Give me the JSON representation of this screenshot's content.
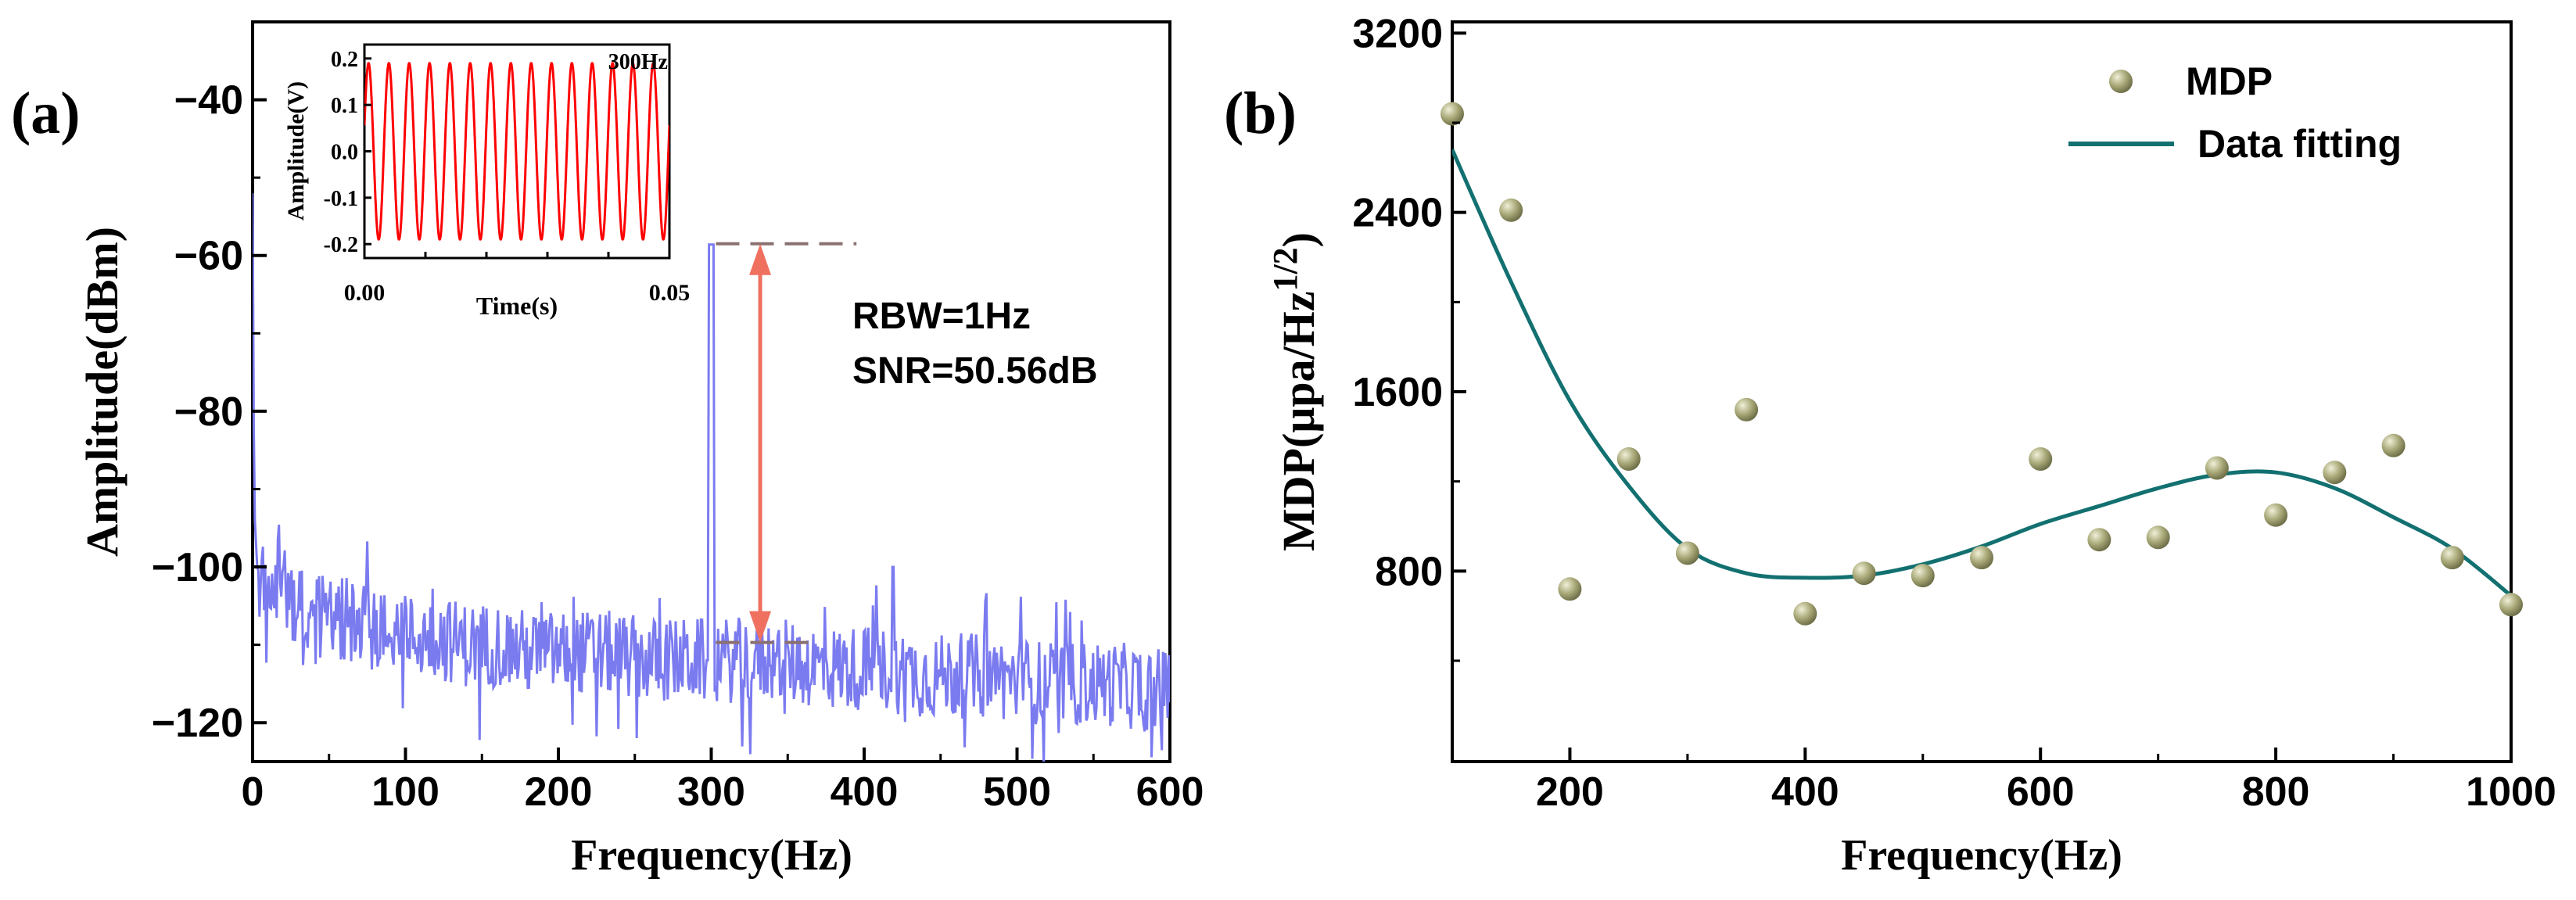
{
  "chart_data": [
    {
      "panel_label": "(a)",
      "type": "line",
      "xlabel": "Frequency(Hz)",
      "ylabel": "Amplitude(dBm)",
      "xlim": [
        0,
        600
      ],
      "ylim": [
        -125,
        -30
      ],
      "xticks": [
        0,
        100,
        200,
        300,
        400,
        500,
        600
      ],
      "yticks": [
        -40,
        -60,
        -80,
        -100,
        -120
      ],
      "tick_labels_x": [
        "0",
        "100",
        "200",
        "300",
        "400",
        "500",
        "600"
      ],
      "tick_labels_y": [
        "−40",
        "−60",
        "−80",
        "−100",
        "−120"
      ],
      "series_color": "#7b7bf0",
      "noise_floor": [
        [
          0,
          -52
        ],
        [
          1,
          -92
        ],
        [
          3,
          -100
        ],
        [
          8,
          -103
        ],
        [
          15,
          -101
        ],
        [
          25,
          -104
        ],
        [
          40,
          -106
        ],
        [
          60,
          -107
        ],
        [
          80,
          -108
        ],
        [
          100,
          -109
        ],
        [
          120,
          -109
        ],
        [
          140,
          -110
        ],
        [
          160,
          -110
        ],
        [
          180,
          -111
        ],
        [
          200,
          -111
        ],
        [
          230,
          -111
        ],
        [
          260,
          -112
        ],
        [
          295,
          -112
        ],
        [
          305,
          -112
        ],
        [
          340,
          -112
        ],
        [
          380,
          -113
        ],
        [
          410,
          -113
        ],
        [
          440,
          -114
        ],
        [
          480,
          -114
        ],
        [
          520,
          -115
        ],
        [
          560,
          -115
        ],
        [
          600,
          -116
        ]
      ],
      "signal_peak": {
        "freq": 300,
        "amplitude": -58.6
      },
      "spurs": [
        {
          "freq": 419,
          "amplitude": -100
        }
      ],
      "annotation": {
        "lines": [
          "RBW=1Hz",
          "SNR=50.56dB"
        ],
        "top_level": -58.5,
        "noise_level": -109.7,
        "arrow_freq": 332,
        "arrow_color": "#f07060",
        "dash_color": "#8a7070"
      },
      "inset": {
        "type": "line",
        "xlabel": "Time(s)",
        "ylabel": "Amplitude(V)",
        "label": "300Hz",
        "xlim": [
          0,
          0.05
        ],
        "ylim": [
          -0.23,
          0.23
        ],
        "xtick_labels": [
          "0.00",
          "0.05"
        ],
        "ytick_values": [
          0.2,
          0.1,
          0.0,
          -0.1,
          -0.2
        ],
        "ytick_labels": [
          "0.2",
          "0.1",
          "0.0",
          "-0.1",
          "-0.2"
        ],
        "frequency_hz": 300,
        "amplitude_v": 0.19,
        "color": "#ff0000"
      }
    },
    {
      "panel_label": "(b)",
      "type": "scatter",
      "xlabel": "Frequency(Hz)",
      "ylabel_main": "MDP(μpa/Hz",
      "ylabel_sup": "1/2",
      "ylabel_close": ")",
      "xlim": [
        100,
        1000
      ],
      "ylim": [
        -50,
        3250
      ],
      "xticks": [
        200,
        400,
        600,
        800,
        1000
      ],
      "yticks": [
        800,
        1600,
        2400,
        3200
      ],
      "tick_labels_x": [
        "200",
        "400",
        "600",
        "800",
        "1000"
      ],
      "tick_labels_y": [
        "800",
        "1600",
        "2400",
        "3200"
      ],
      "legend": [
        "MDP",
        "Data fitting"
      ],
      "legend_position": "top-right",
      "series": [
        {
          "name": "MDP",
          "type": "scatter",
          "color": "#a8a878",
          "x": [
            100,
            150,
            200,
            250,
            300,
            350,
            400,
            450,
            500,
            550,
            600,
            650,
            700,
            750,
            800,
            850,
            900,
            950,
            1000
          ],
          "y": [
            2840,
            2410,
            720,
            1300,
            880,
            1520,
            610,
            790,
            780,
            860,
            1300,
            940,
            950,
            1260,
            1050,
            1240,
            1360,
            860,
            650
          ]
        },
        {
          "name": "Data fitting",
          "type": "line",
          "color": "#137070",
          "x": [
            100,
            150,
            200,
            250,
            300,
            350,
            400,
            450,
            500,
            550,
            600,
            650,
            700,
            750,
            800,
            850,
            900,
            950,
            1000
          ],
          "y": [
            2680,
            2090,
            1560,
            1180,
            900,
            790,
            770,
            780,
            830,
            910,
            1010,
            1090,
            1170,
            1230,
            1240,
            1170,
            1040,
            900,
            690
          ]
        }
      ]
    }
  ]
}
